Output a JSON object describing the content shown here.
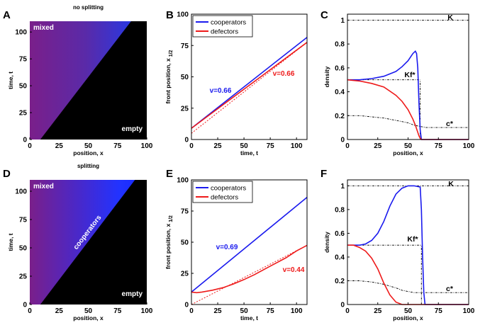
{
  "colors": {
    "cooperators": "#1a1aee",
    "defectors": "#ee1a1a",
    "mixed": "#7a1f8a",
    "empty": "#000000",
    "reference": "#000000"
  },
  "chart_data": [
    {
      "panel": "A",
      "type": "heatmap",
      "title": "no splitting",
      "xlabel": "position, x",
      "ylabel": "time, t",
      "xlim": [
        0,
        100
      ],
      "ylim": [
        0,
        110
      ],
      "xticks": [
        0,
        25,
        50,
        75,
        100
      ],
      "yticks": [
        0,
        25,
        50,
        75,
        100
      ],
      "annotations": [
        "mixed",
        "empty"
      ],
      "front": {
        "x_at_t0": 9,
        "speed": 0.66
      },
      "coop_band": false
    },
    {
      "panel": "B",
      "type": "line",
      "title": "",
      "xlabel": "time, t",
      "ylabel": "front position, x",
      "ylabel_subscript": "1/2",
      "xlim": [
        0,
        110
      ],
      "ylim": [
        0,
        100
      ],
      "xticks": [
        0,
        25,
        50,
        75,
        100
      ],
      "yticks": [
        0,
        25,
        50,
        75,
        100
      ],
      "legend": [
        "cooperators",
        "defectors"
      ],
      "legend_position": "top-left",
      "series": [
        {
          "name": "cooperators",
          "x": [
            0,
            110
          ],
          "y": [
            9,
            81.5
          ]
        },
        {
          "name": "defectors",
          "x": [
            0,
            110
          ],
          "y": [
            9,
            77.5
          ]
        }
      ],
      "asymptotes": [
        {
          "x": [
            0,
            110
          ],
          "y": [
            5,
            77.5
          ]
        }
      ],
      "annotations": [
        "v=0.66",
        "v=0.66"
      ]
    },
    {
      "panel": "C",
      "type": "line",
      "title": "",
      "xlabel": "position, x",
      "ylabel": "density",
      "xlim": [
        0,
        100
      ],
      "ylim": [
        0,
        1.05
      ],
      "xticks": [
        0,
        25,
        50,
        75,
        100
      ],
      "yticks": [
        0,
        0.2,
        0.4,
        0.6,
        0.8,
        1
      ],
      "series": [
        {
          "name": "cooperators",
          "x": [
            0,
            10,
            20,
            30,
            40,
            45,
            50,
            54,
            56,
            57,
            58,
            59,
            60,
            61,
            100
          ],
          "y": [
            0.5,
            0.5,
            0.51,
            0.53,
            0.57,
            0.61,
            0.66,
            0.72,
            0.74,
            0.72,
            0.6,
            0.3,
            0.08,
            0.0,
            0.0
          ]
        },
        {
          "name": "defectors",
          "x": [
            0,
            10,
            20,
            30,
            40,
            45,
            50,
            54,
            56,
            58,
            59,
            60,
            61,
            100
          ],
          "y": [
            0.5,
            0.49,
            0.47,
            0.44,
            0.37,
            0.32,
            0.25,
            0.17,
            0.12,
            0.06,
            0.03,
            0.01,
            0.0,
            0.0
          ]
        }
      ],
      "reference_lines": [
        {
          "x": [
            0,
            100
          ],
          "y": [
            1,
            1
          ]
        },
        {
          "x": [
            0,
            60
          ],
          "y": [
            0.5,
            0.5
          ]
        },
        {
          "x": [
            60,
            60
          ],
          "y": [
            0,
            0.5
          ]
        },
        {
          "x": [
            0,
            10,
            20,
            30,
            40,
            50,
            55,
            60,
            65,
            100
          ],
          "y": [
            0.2,
            0.2,
            0.19,
            0.18,
            0.16,
            0.14,
            0.12,
            0.11,
            0.1,
            0.1
          ]
        }
      ],
      "annotations": [
        "K",
        "Kf*",
        "c*"
      ]
    },
    {
      "panel": "D",
      "type": "heatmap",
      "title": "splitting",
      "xlabel": "position, x",
      "ylabel": "time, t",
      "xlim": [
        0,
        100
      ],
      "ylim": [
        0,
        110
      ],
      "xticks": [
        0,
        25,
        50,
        75,
        100
      ],
      "yticks": [
        0,
        25,
        50,
        75,
        100
      ],
      "annotations": [
        "mixed",
        "cooperators",
        "empty"
      ],
      "front": {
        "x_at_t0": 9,
        "speed": 0.69
      },
      "coop_band": true
    },
    {
      "panel": "E",
      "type": "line",
      "title": "",
      "xlabel": "time, t",
      "ylabel": "front position, x",
      "ylabel_subscript": "1/2",
      "xlim": [
        0,
        110
      ],
      "ylim": [
        0,
        100
      ],
      "xticks": [
        0,
        25,
        50,
        75,
        100
      ],
      "yticks": [
        0,
        25,
        50,
        75,
        100
      ],
      "legend": [
        "cooperators",
        "defectors"
      ],
      "legend_position": "top-left",
      "series": [
        {
          "name": "cooperators",
          "x": [
            0,
            110
          ],
          "y": [
            10,
            86
          ]
        },
        {
          "name": "defectors",
          "x": [
            0,
            5,
            10,
            20,
            30,
            40,
            50,
            60,
            70,
            80,
            90,
            100,
            110
          ],
          "y": [
            10,
            9.5,
            10,
            11.5,
            13.5,
            16.5,
            20,
            24,
            28.5,
            33,
            37.5,
            43,
            47.5
          ]
        }
      ],
      "asymptotes": [
        {
          "x": [
            0,
            110
          ],
          "y": [
            0,
            47.5
          ]
        }
      ],
      "annotations": [
        "v=0.69",
        "v=0.44"
      ]
    },
    {
      "panel": "F",
      "type": "line",
      "title": "",
      "xlabel": "position, x",
      "ylabel": "density",
      "xlim": [
        0,
        100
      ],
      "ylim": [
        0,
        1.05
      ],
      "xticks": [
        0,
        25,
        50,
        75,
        100
      ],
      "yticks": [
        0,
        0.2,
        0.4,
        0.6,
        0.8,
        1
      ],
      "series": [
        {
          "name": "cooperators",
          "x": [
            0,
            10,
            15,
            20,
            25,
            30,
            35,
            40,
            45,
            50,
            55,
            60,
            61,
            62,
            63,
            64,
            100
          ],
          "y": [
            0.5,
            0.5,
            0.51,
            0.54,
            0.6,
            0.7,
            0.83,
            0.93,
            0.98,
            1.0,
            1.0,
            0.99,
            0.8,
            0.4,
            0.1,
            0.0,
            0.0
          ]
        },
        {
          "name": "defectors",
          "x": [
            0,
            5,
            10,
            15,
            20,
            25,
            30,
            35,
            40,
            45,
            50,
            100
          ],
          "y": [
            0.5,
            0.5,
            0.48,
            0.45,
            0.39,
            0.3,
            0.18,
            0.08,
            0.02,
            0.0,
            0.0,
            0.0
          ]
        }
      ],
      "reference_lines": [
        {
          "x": [
            0,
            100
          ],
          "y": [
            1,
            1
          ]
        },
        {
          "x": [
            0,
            61
          ],
          "y": [
            0.5,
            0.5
          ]
        },
        {
          "x": [
            61,
            61
          ],
          "y": [
            0,
            0.5
          ]
        },
        {
          "x": [
            0,
            10,
            20,
            30,
            40,
            45,
            50,
            55,
            60,
            100
          ],
          "y": [
            0.2,
            0.2,
            0.19,
            0.17,
            0.14,
            0.12,
            0.11,
            0.1,
            0.1,
            0.1
          ]
        }
      ],
      "annotations": [
        "K",
        "Kf*",
        "c*"
      ]
    }
  ]
}
